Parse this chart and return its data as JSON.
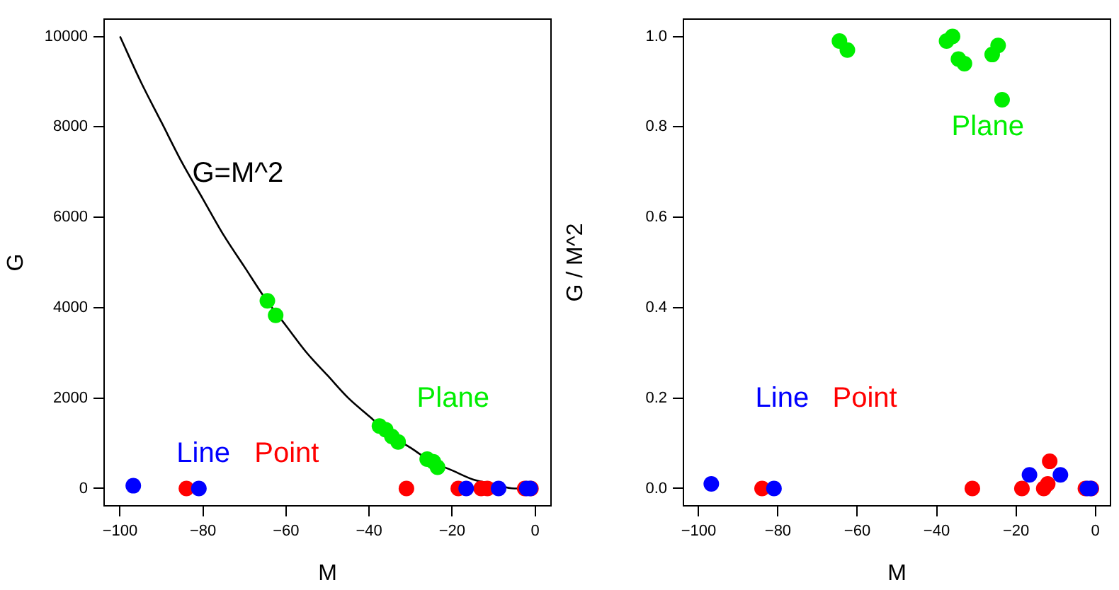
{
  "chart_data": [
    {
      "type": "scatter",
      "xlabel": "M",
      "ylabel": "G",
      "xlim": [
        -104,
        4
      ],
      "xticks": [
        -100,
        -80,
        -60,
        -40,
        -20,
        0
      ],
      "ylim": [
        -400,
        10400
      ],
      "yticks": [
        0,
        2000,
        4000,
        6000,
        8000,
        10000
      ],
      "grid": false,
      "legend": false,
      "marker": "circle",
      "series": [
        {
          "name": "G=M^2",
          "type": "line",
          "color": "#000000",
          "marker": "none",
          "x": [
            -100,
            -95,
            -90,
            -85,
            -80,
            -75,
            -70,
            -65,
            -60,
            -55,
            -50,
            -45,
            -40,
            -35,
            -30,
            -25,
            -20,
            -15,
            -10,
            -5,
            0
          ],
          "values": [
            10000,
            9000,
            8100,
            7200,
            6400,
            5600,
            4900,
            4200,
            3600,
            3000,
            2500,
            2000,
            1600,
            1200,
            900,
            600,
            400,
            200,
            100,
            0,
            0
          ]
        },
        {
          "name": "Plane",
          "color": "#00ee00",
          "x": [
            -64.5,
            -62.5,
            -37.5,
            -36,
            -34.5,
            -33,
            -26,
            -24.5,
            -23.5
          ],
          "values": [
            4150,
            3830,
            1380,
            1300,
            1150,
            1030,
            650,
            590,
            470
          ]
        },
        {
          "name": "Line",
          "color": "#0000ff",
          "x": [
            -96.8,
            -81,
            -16.6,
            -8.8,
            -2,
            -1.2
          ],
          "values": [
            60,
            0,
            0,
            0,
            0,
            0
          ]
        },
        {
          "name": "Point",
          "color": "#ff0000",
          "x": [
            -84,
            -31,
            -18.5,
            -13,
            -11.5,
            -2.5,
            -1
          ],
          "values": [
            0,
            0,
            0,
            0,
            0,
            0,
            0
          ]
        }
      ]
    },
    {
      "type": "scatter",
      "xlabel": "M",
      "ylabel": "G / M^2",
      "xlim": [
        -104,
        4
      ],
      "xticks": [
        -100,
        -80,
        -60,
        -40,
        -20,
        0
      ],
      "ylim": [
        -0.04,
        1.04
      ],
      "yticks": [
        {
          "value": 0,
          "label": "0.0"
        },
        0.2,
        0.4,
        0.6,
        0.8,
        {
          "value": 1,
          "label": "1.0"
        }
      ],
      "grid": false,
      "legend": false,
      "marker": "circle",
      "series": [
        {
          "name": "Plane",
          "color": "#00ee00",
          "x": [
            -64.5,
            -62.5,
            -37.5,
            -36,
            -34.5,
            -33,
            -26,
            -24.5,
            -23.5
          ],
          "values": [
            0.99,
            0.97,
            0.99,
            1.0,
            0.95,
            0.94,
            0.96,
            0.98,
            0.86
          ]
        },
        {
          "name": "Line",
          "color": "#0000ff",
          "x": [
            -96.8,
            -81,
            -16.6,
            -8.8,
            -2,
            -1.2
          ],
          "values": [
            0.01,
            0,
            0.03,
            0.03,
            0,
            0
          ]
        },
        {
          "name": "Point",
          "color": "#ff0000",
          "x": [
            -84,
            -31,
            -18.5,
            -13,
            -12,
            -11.5,
            -2.5,
            -1
          ],
          "values": [
            0,
            0,
            0,
            0,
            0.01,
            0.06,
            0,
            0
          ]
        }
      ]
    }
  ]
}
